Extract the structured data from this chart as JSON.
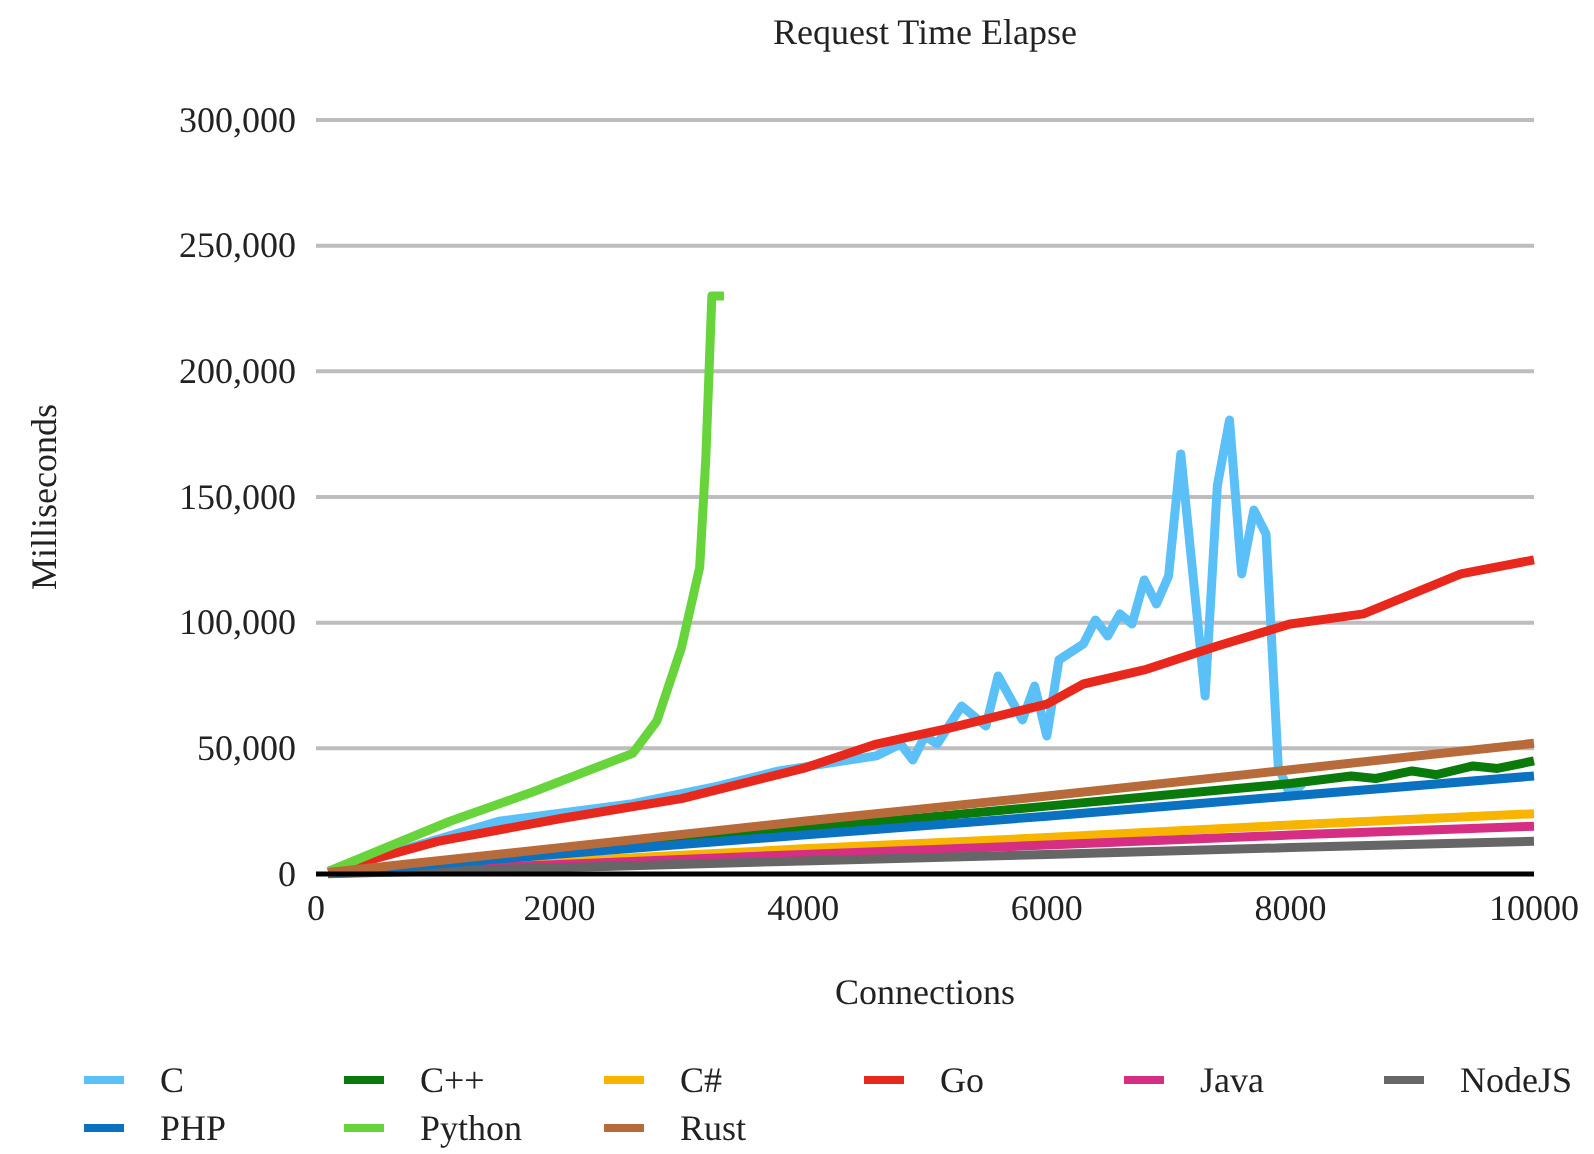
{
  "chart_data": {
    "type": "line",
    "title": "Request Time Elapse",
    "xlabel": "Connections",
    "ylabel": "Milliseconds",
    "xlim": [
      0,
      10000
    ],
    "xticks": [
      0,
      2000,
      4000,
      6000,
      8000,
      10000
    ],
    "ylim": [
      0,
      300000
    ],
    "yticks": [
      {
        "value": 0,
        "label": "0"
      },
      {
        "value": 50000,
        "label": "50,000"
      },
      {
        "value": 100000,
        "label": "100,000"
      },
      {
        "value": 150000,
        "label": "150,000"
      },
      {
        "value": 200000,
        "label": "200,000"
      },
      {
        "value": 250000,
        "label": "250,000"
      },
      {
        "value": 300000,
        "label": "300,000"
      }
    ],
    "grid": "y",
    "legend": "bottom",
    "marker": "none",
    "line_style": "solid",
    "series": [
      {
        "name": "C",
        "color": "#5bc0f8",
        "x": [
          100,
          1500,
          2600,
          3300,
          3800,
          4200,
          4600,
          4800,
          4900,
          5000,
          5100,
          5300,
          5500,
          5600,
          5800,
          5900,
          6000,
          6100,
          6300,
          6400,
          6500,
          6600,
          6700,
          6800,
          6900,
          7000,
          7100,
          7300,
          7400,
          7500,
          7600,
          7700,
          7800,
          7900,
          8000,
          8100
        ],
        "values": [
          1000,
          21000,
          28000,
          35000,
          41000,
          44000,
          47000,
          51700,
          45400,
          54900,
          51700,
          66800,
          58900,
          78800,
          61300,
          74800,
          54900,
          85200,
          91500,
          101100,
          94700,
          103500,
          99500,
          117000,
          107400,
          118600,
          167100,
          70800,
          154400,
          180600,
          119400,
          144800,
          135300,
          43000,
          31000,
          36000
        ]
      },
      {
        "name": "C++",
        "color": "#0a7a0a",
        "x": [
          100,
          2000,
          4000,
          6000,
          7000,
          8000,
          8500,
          8700,
          9000,
          9200,
          9500,
          9700,
          10000
        ],
        "values": [
          500,
          9000,
          18000,
          27000,
          31500,
          36000,
          39000,
          38000,
          41000,
          39500,
          43000,
          42000,
          45000
        ]
      },
      {
        "name": "C#",
        "color": "#f7b500",
        "x": [
          100,
          2000,
          4000,
          6000,
          8000,
          10000
        ],
        "values": [
          300,
          5000,
          10000,
          14500,
          19500,
          24000
        ]
      },
      {
        "name": "Go",
        "color": "#e8281c",
        "x": [
          100,
          1000,
          2000,
          3000,
          4000,
          4600,
          5200,
          6000,
          6300,
          6800,
          7400,
          8000,
          8600,
          9400,
          10000
        ],
        "values": [
          1000,
          13000,
          22000,
          30000,
          42000,
          51700,
          58000,
          67600,
          75600,
          81200,
          90700,
          99500,
          103500,
          119400,
          125000
        ]
      },
      {
        "name": "Java",
        "color": "#d62e82",
        "x": [
          100,
          2000,
          4000,
          6000,
          8000,
          10000
        ],
        "values": [
          200,
          3800,
          7800,
          11500,
          15500,
          19000
        ]
      },
      {
        "name": "NodeJS",
        "color": "#666666",
        "x": [
          100,
          2000,
          4000,
          6000,
          8000,
          10000
        ],
        "values": [
          100,
          2500,
          5200,
          7800,
          10500,
          13000
        ]
      },
      {
        "name": "PHP",
        "color": "#0a72c0",
        "x": [
          100,
          2000,
          4000,
          6000,
          8000,
          10000
        ],
        "values": [
          400,
          8000,
          15500,
          23000,
          31000,
          39000
        ]
      },
      {
        "name": "Python",
        "color": "#66d43a",
        "x": [
          100,
          1100,
          1800,
          2600,
          2800,
          3000,
          3150,
          3200,
          3250,
          3350
        ],
        "values": [
          1000,
          21000,
          33000,
          48000,
          61000,
          90000,
          122000,
          165000,
          230000,
          230000
        ]
      },
      {
        "name": "Rust",
        "color": "#b86b3a",
        "x": [
          100,
          2000,
          4000,
          6000,
          8000,
          10000
        ],
        "values": [
          600,
          10500,
          21000,
          31000,
          41500,
          52000
        ]
      }
    ]
  }
}
